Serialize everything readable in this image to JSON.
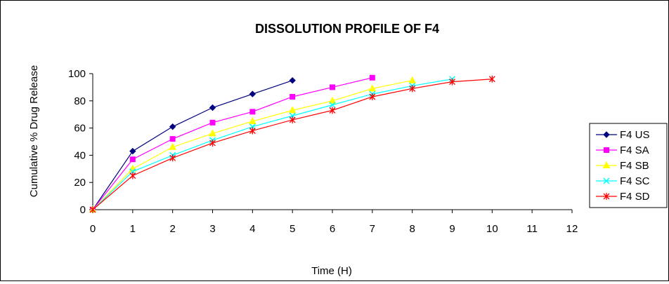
{
  "chart_data": {
    "type": "line",
    "title": "DISSOLUTION PROFILE OF F4",
    "xlabel": "Time (H)",
    "ylabel": "Cumulative % Drug Release",
    "xlim": [
      0,
      12
    ],
    "ylim": [
      0,
      100
    ],
    "x_ticks": [
      "0",
      "1",
      "2",
      "3",
      "4",
      "5",
      "6",
      "7",
      "8",
      "9",
      "10",
      "11",
      "12"
    ],
    "y_ticks": [
      "0",
      "20",
      "40",
      "60",
      "80",
      "100"
    ],
    "grid": false,
    "legend_position": "right",
    "series": [
      {
        "name": "F4 US",
        "color": "#000080",
        "marker": "diamond",
        "x": [
          0,
          1,
          2,
          3,
          4,
          5
        ],
        "y": [
          0,
          43,
          61,
          75,
          85,
          95
        ]
      },
      {
        "name": "F4 SA",
        "color": "#FF00FF",
        "marker": "square",
        "x": [
          0,
          1,
          2,
          3,
          4,
          5,
          6,
          7
        ],
        "y": [
          0,
          37,
          52,
          64,
          72,
          83,
          90,
          97
        ]
      },
      {
        "name": "F4 SB",
        "color": "#FFFF00",
        "marker": "triangle",
        "x": [
          0,
          1,
          2,
          3,
          4,
          5,
          6,
          7,
          8
        ],
        "y": [
          0,
          30,
          46,
          56,
          65,
          73,
          80,
          89,
          95
        ]
      },
      {
        "name": "F4 SC",
        "color": "#00FFFF",
        "marker": "x",
        "x": [
          0,
          1,
          2,
          3,
          4,
          5,
          6,
          7,
          8,
          9
        ],
        "y": [
          0,
          28,
          40,
          51,
          61,
          69,
          77,
          85,
          91,
          96
        ]
      },
      {
        "name": "F4 SD",
        "color": "#FF0000",
        "marker": "star",
        "x": [
          0,
          1,
          2,
          3,
          4,
          5,
          6,
          7,
          8,
          9,
          10
        ],
        "y": [
          0,
          25,
          38,
          49,
          58,
          66,
          73,
          83,
          89,
          94,
          96
        ]
      }
    ]
  }
}
